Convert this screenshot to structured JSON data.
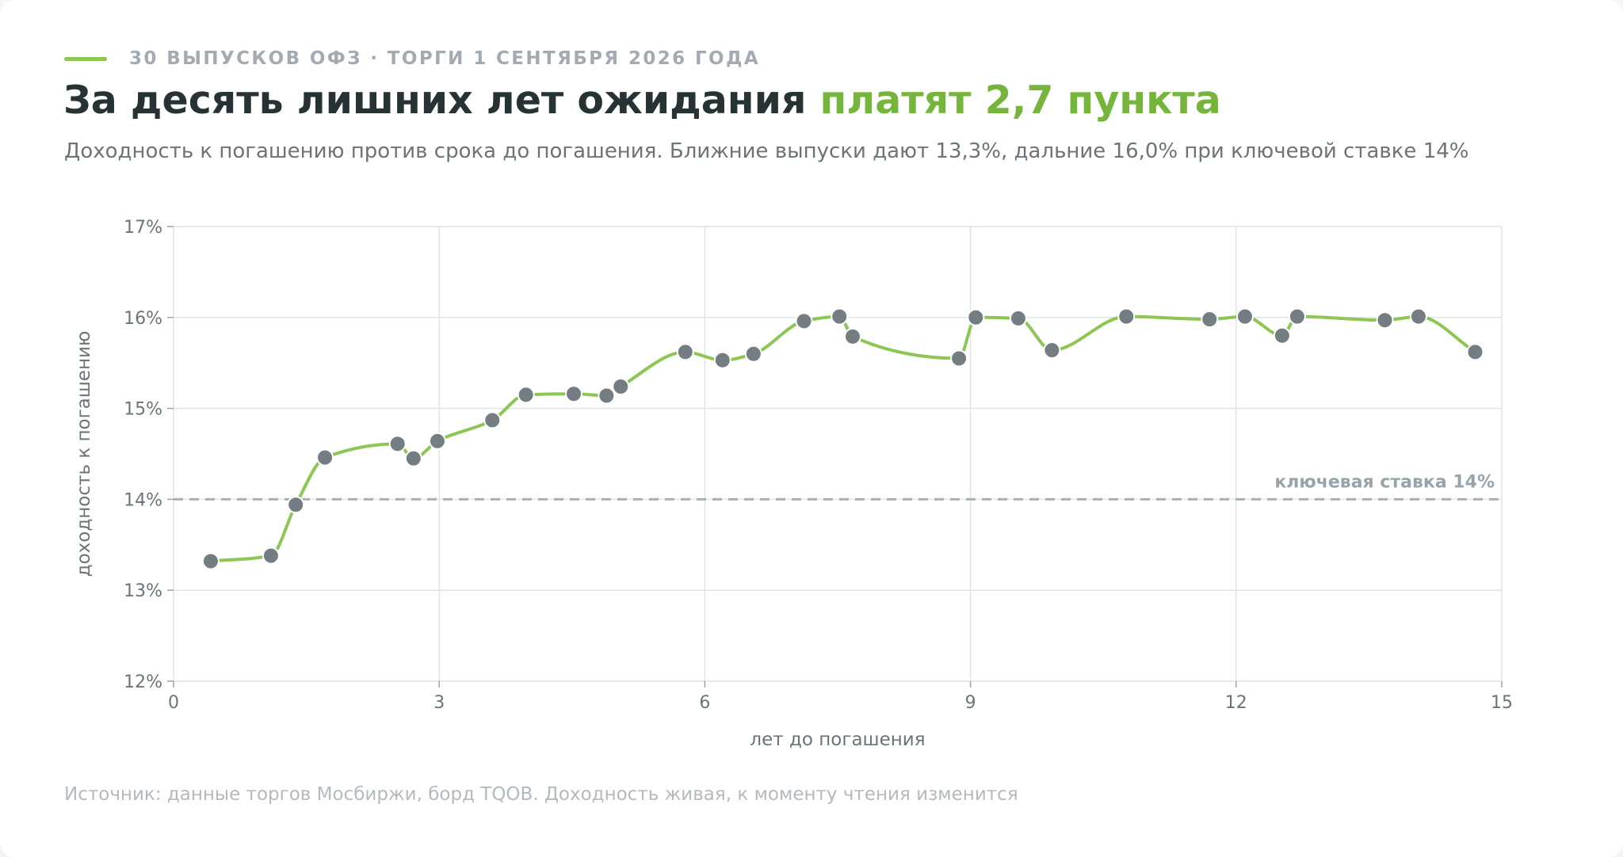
{
  "header": {
    "eyebrow": "30 ВЫПУСКОВ ОФЗ · ТОРГИ 1 СЕНТЯБРЯ 2026 ГОДА",
    "title_main": "За десять лишних лет ожидания ",
    "title_highlight": "платят 2,7 пункта",
    "subtitle": "Доходность к погашению против срока до погашения. Ближние выпуски дают 13,3%, дальние 16,0% при ключевой ставке 14%"
  },
  "footer": {
    "source": "Источник: данные торгов Мосбиржи, борд TQOB. Доходность живая, к моменту чтения изменится"
  },
  "colors": {
    "accent": "#8dc653",
    "accent_text": "#76b53c",
    "title": "#263233",
    "point": "#747d82",
    "grid": "#dfe4e6",
    "reference": "#a5b1b9",
    "tick": "#6b7478"
  },
  "chart_data": {
    "type": "line",
    "xlabel": "лет до погашения",
    "ylabel": "доходность к погашению",
    "xlim": [
      0,
      15
    ],
    "ylim": [
      12,
      17
    ],
    "x_ticks": [
      0,
      3,
      6,
      9,
      12,
      15
    ],
    "y_ticks": [
      12,
      13,
      14,
      15,
      16,
      17
    ],
    "y_tick_labels": [
      "12%",
      "13%",
      "14%",
      "15%",
      "16%",
      "17%"
    ],
    "grid": true,
    "reference_line": {
      "y": 14.0,
      "label": "ключевая ставка 14%"
    },
    "series": [
      {
        "x": [
          0.42,
          1.1,
          1.38,
          1.71,
          2.53,
          2.71,
          2.98,
          3.6,
          3.98,
          4.52,
          4.89,
          5.05,
          5.78,
          6.2,
          6.55,
          7.12,
          7.52,
          7.67,
          8.87,
          9.06,
          9.54,
          9.92,
          10.76,
          11.7,
          12.1,
          12.52,
          12.69,
          13.68,
          14.06,
          14.7
        ],
        "y": [
          13.32,
          13.38,
          13.94,
          14.46,
          14.61,
          14.45,
          14.64,
          14.87,
          15.15,
          15.16,
          15.14,
          15.24,
          15.62,
          15.53,
          15.6,
          15.96,
          16.01,
          15.79,
          15.55,
          16.0,
          15.99,
          15.64,
          16.01,
          15.98,
          16.01,
          15.8,
          16.01,
          15.97,
          16.01,
          15.62
        ]
      }
    ]
  }
}
